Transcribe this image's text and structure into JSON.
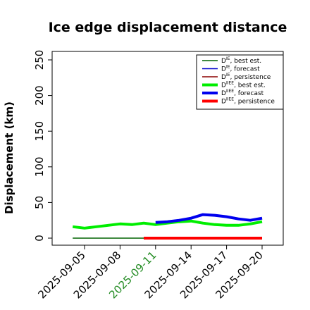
{
  "chart_data": {
    "type": "line",
    "title": "Ice edge displacement distance",
    "ylabel": "Displacement (km)",
    "xlabel": "",
    "ylim": [
      0,
      260
    ],
    "xlim": [
      "2025-09-03",
      "2025-09-21"
    ],
    "grid": false,
    "legend_position": "top-right",
    "y_ticks": [
      0,
      50,
      100,
      150,
      200,
      250
    ],
    "x_ticks": [
      "2025-09-05",
      "2025-09-08",
      "2025-09-11",
      "2025-09-14",
      "2025-09-17",
      "2025-09-20"
    ],
    "highlighted_x_tick": "2025-09-11",
    "highlight_color": "#228b22",
    "series": [
      {
        "name": "D^IE, best est.",
        "base": "D",
        "sup": "IE",
        "suffix": ", best est.",
        "color": "#006400",
        "width": 1.4,
        "x": [
          "2025-09-04",
          "2025-09-05",
          "2025-09-06",
          "2025-09-07",
          "2025-09-08",
          "2025-09-09",
          "2025-09-10",
          "2025-09-11"
        ],
        "values": [
          0,
          0,
          0,
          0,
          0,
          0,
          0,
          0
        ]
      },
      {
        "name": "D^IE, forecast",
        "base": "D",
        "sup": "IE",
        "suffix": ", forecast",
        "color": "#0000cd",
        "width": 1.4,
        "x": [
          "2025-09-11",
          "2025-09-20"
        ],
        "values": [
          0,
          0
        ]
      },
      {
        "name": "D^IE, persistence",
        "base": "D",
        "sup": "IE",
        "suffix": ", persistence",
        "color": "#8b0000",
        "width": 1.4,
        "x": [
          "2025-09-10",
          "2025-09-20"
        ],
        "values": [
          0,
          0
        ]
      },
      {
        "name": "D^IIEE, best est.",
        "base": "D",
        "sup": "IIEE",
        "suffix": ", best est.",
        "color": "#00ee00",
        "width": 4,
        "x": [
          "2025-09-04",
          "2025-09-05",
          "2025-09-06",
          "2025-09-07",
          "2025-09-08",
          "2025-09-09",
          "2025-09-10",
          "2025-09-11",
          "2025-09-12",
          "2025-09-13",
          "2025-09-14",
          "2025-09-15",
          "2025-09-16",
          "2025-09-17",
          "2025-09-18",
          "2025-09-19",
          "2025-09-20"
        ],
        "values": [
          16,
          14,
          16,
          18,
          20,
          19,
          21,
          19,
          21,
          23,
          24,
          21,
          19,
          18,
          18,
          20,
          23
        ]
      },
      {
        "name": "D^IIEE, forecast",
        "base": "D",
        "sup": "IIEE",
        "suffix": ", forecast",
        "color": "#0000ee",
        "width": 4,
        "x": [
          "2025-09-11",
          "2025-09-12",
          "2025-09-13",
          "2025-09-14",
          "2025-09-15",
          "2025-09-16",
          "2025-09-17",
          "2025-09-18",
          "2025-09-19",
          "2025-09-20"
        ],
        "values": [
          22,
          23,
          25,
          28,
          33,
          32,
          30,
          27,
          25,
          28
        ]
      },
      {
        "name": "D^IIEE, persistence",
        "base": "D",
        "sup": "IIEE",
        "suffix": ", persistence",
        "color": "#ff0000",
        "width": 4,
        "x": [
          "2025-09-10",
          "2025-09-20"
        ],
        "values": [
          0,
          0
        ]
      }
    ]
  }
}
